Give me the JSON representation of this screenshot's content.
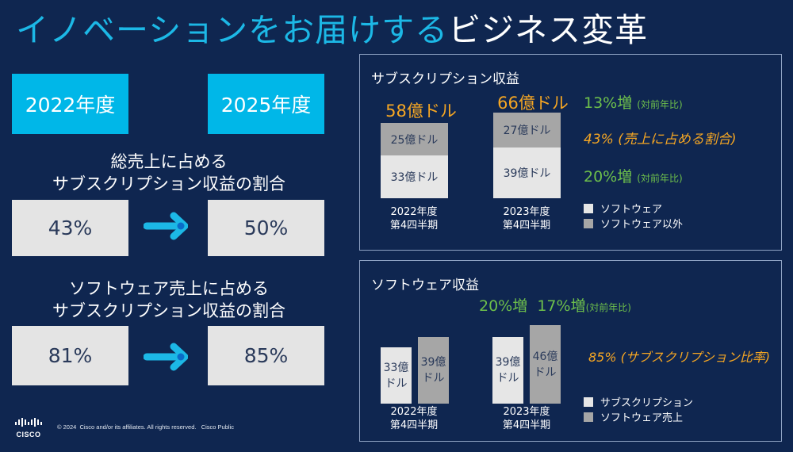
{
  "title": {
    "highlight": "イノベーションをお届けする",
    "rest": "ビジネス変革"
  },
  "left": {
    "year_from": "2022年度",
    "year_to": "2025年度",
    "section1": {
      "heading_line1": "総売上に占める",
      "heading_line2": "サブスクリプション収益の割合",
      "from": "43%",
      "to": "50%"
    },
    "section2": {
      "heading_line1": "ソフトウェア売上に占める",
      "heading_line2": "サブスクリプション収益の割合",
      "from": "81%",
      "to": "85%"
    }
  },
  "footer": {
    "logo_text": "CISCO",
    "copyright": "© 2024  Cisco and/or its affiliates. All rights reserved.   Cisco Public"
  },
  "chart_data": [
    {
      "type": "bar",
      "stacked": true,
      "title": "サブスクリプション収益",
      "categories": [
        {
          "line1": "2022年度",
          "line2": "第4四半期"
        },
        {
          "line1": "2023年度",
          "line2": "第4四半期"
        }
      ],
      "totals": [
        "58億ドル",
        "66億ドル"
      ],
      "total_values": [
        58,
        66
      ],
      "series": [
        {
          "name": "ソフトウェア",
          "values": [
            33,
            39
          ],
          "labels": [
            "33億ドル",
            "39億ドル"
          ],
          "color": "#e6e6e6"
        },
        {
          "name": "ソフトウェア以外",
          "values": [
            25,
            27
          ],
          "labels": [
            "25億ドル",
            "27億ドル"
          ],
          "color": "#a6a6a6"
        }
      ],
      "annotations": {
        "top_growth": "13%増",
        "top_growth_note": "(対前年比)",
        "share": "43% (売上に占める割合)",
        "bottom_growth": "20%増",
        "bottom_growth_note": "(対前年比)"
      },
      "legend_position": "bottom-right"
    },
    {
      "type": "bar",
      "stacked": false,
      "title": "ソフトウェア収益",
      "categories": [
        {
          "line1": "2022年度",
          "line2": "第4四半期"
        },
        {
          "line1": "2023年度",
          "line2": "第4四半期"
        }
      ],
      "series": [
        {
          "name": "サブスクリプション",
          "values": [
            33,
            39
          ],
          "labels_top": [
            "33億",
            "39億"
          ],
          "labels_bottom": [
            "ドル",
            "ドル"
          ],
          "color": "#e6e6e6"
        },
        {
          "name": "ソフトウェア売上",
          "values": [
            39,
            46
          ],
          "labels_top": [
            "39億",
            "46億"
          ],
          "labels_bottom": [
            "ドル",
            "ドル"
          ],
          "color": "#a6a6a6"
        }
      ],
      "annotations": {
        "growth_sub": "20%増",
        "growth_sw": "17%増",
        "growth_note": "(対前年比)",
        "ratio": "85% (サブスクリプション比率)"
      },
      "legend_position": "bottom-right"
    }
  ],
  "colors": {
    "background": "#0f2650",
    "accent": "#00b7e8",
    "orange": "#f5a623",
    "green": "#6dbf4b"
  }
}
